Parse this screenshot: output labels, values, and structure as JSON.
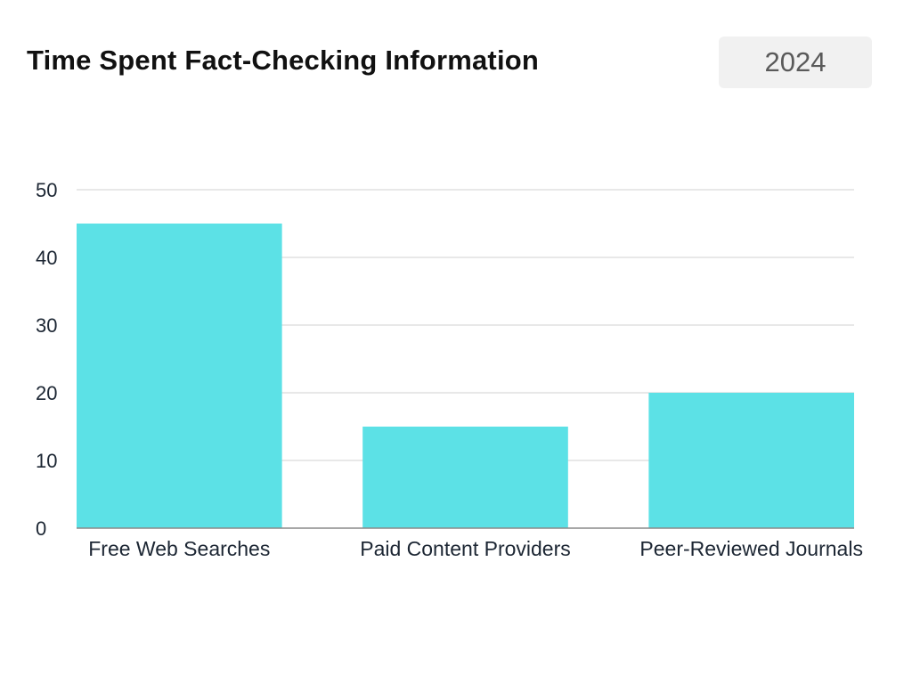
{
  "header": {
    "title": "Time Spent Fact-Checking Information",
    "year": "2024"
  },
  "colors": {
    "bar": "#5ce1e6",
    "grid": "#d0d0d0",
    "axis": "#8a8a8a",
    "text": "#1c2633"
  },
  "chart_data": {
    "type": "bar",
    "title": "Time Spent Fact-Checking Information",
    "categories": [
      "Free Web Searches",
      "Paid Content Providers",
      "Peer-Reviewed Journals"
    ],
    "values": [
      45,
      15,
      20
    ],
    "yticks": [
      0,
      10,
      20,
      30,
      40,
      50
    ],
    "ylim": [
      0,
      50
    ],
    "xlabel": "",
    "ylabel": "",
    "grid": true,
    "legend": "none"
  }
}
